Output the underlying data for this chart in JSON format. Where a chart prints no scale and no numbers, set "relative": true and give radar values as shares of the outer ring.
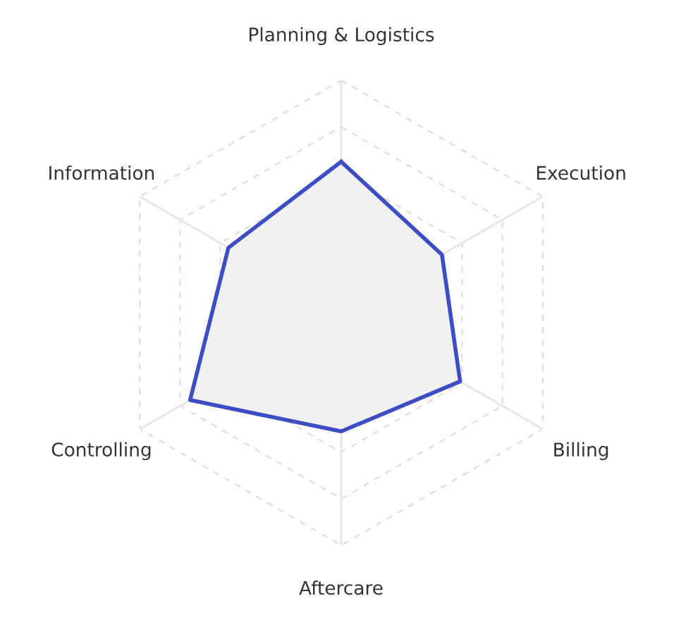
{
  "chart_data": {
    "type": "radar",
    "relative": true,
    "grid": true,
    "categories": [
      "Planning & Logistics",
      "Execution",
      "Billing",
      "Aftercare",
      "Controlling",
      "Information"
    ],
    "series": [
      {
        "color": "#3d4ec4",
        "values": [
          0.65,
          0.5,
          0.59,
          0.51,
          0.75,
          0.56
        ]
      }
    ]
  }
}
